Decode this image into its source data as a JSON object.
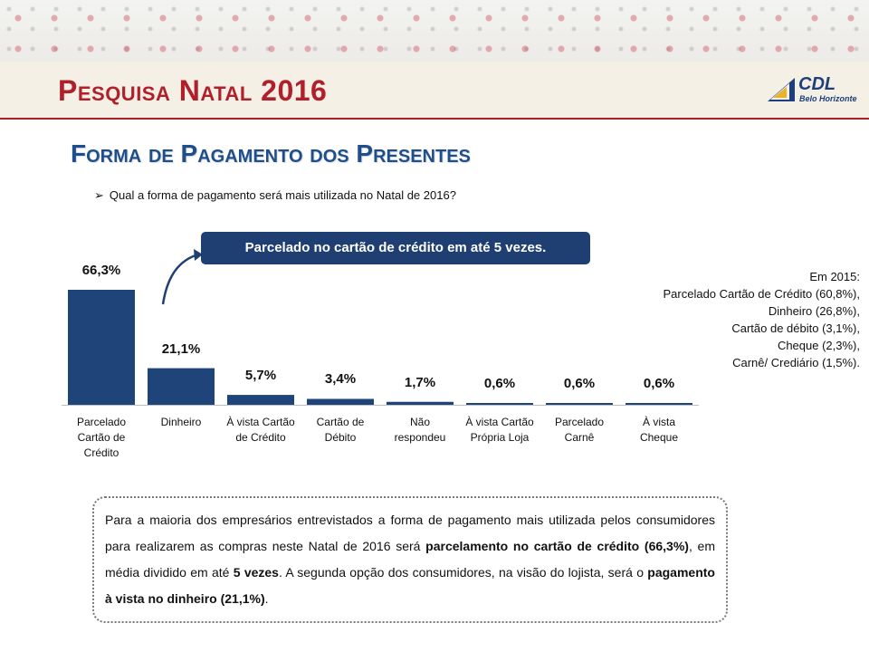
{
  "header": {
    "title": "Pesquisa Natal 2016",
    "logo_name": "CDL",
    "logo_sub": "Belo Horizonte"
  },
  "section_title": "Forma de Pagamento dos Presentes",
  "question": "Qual a forma de pagamento será mais utilizada no Natal de 2016?",
  "callout": "Parcelado no cartão de crédito em até 5 vezes.",
  "ref_2015": {
    "heading": "Em 2015:",
    "items": [
      "Parcelado Cartão de Crédito (60,8%),",
      "Dinheiro (26,8%),",
      "Cartão de débito (3,1%),",
      "Cheque (2,3%),",
      "Carnê/ Crediário (1,5%)."
    ]
  },
  "note": {
    "p1": "Para a maioria dos empresários entrevistados a forma de pagamento mais utilizada pelos consumidores para realizarem as compras neste Natal de 2016 será ",
    "b1": "parcelamento no cartão de crédito (66,3%)",
    "p2": ", em média dividido em até ",
    "b2": "5 vezes",
    "p3": ". A segunda opção dos consumidores, na visão do lojista, será o ",
    "b3": "pagamento à vista no dinheiro (21,1%)",
    "p4": "."
  },
  "colors": {
    "bar": "#1f4479",
    "accent_red": "#b01f2a",
    "title_blue": "#1e4f8c"
  },
  "chart_data": {
    "type": "bar",
    "categories": [
      "Parcelado Cartão de Crédito",
      "Dinheiro",
      "À vista Cartão de Crédito",
      "Cartão de Débito",
      "Não respondeu",
      "À vista Cartão Própria Loja",
      "Parcelado Carnê",
      "À vista Cheque"
    ],
    "category_lines": [
      [
        "Parcelado",
        "Cartão de",
        "Crédito"
      ],
      [
        "Dinheiro"
      ],
      [
        "À vista Cartão",
        "de Crédito"
      ],
      [
        "Cartão de",
        "Débito"
      ],
      [
        "Não",
        "respondeu"
      ],
      [
        "À vista Cartão",
        "Própria Loja"
      ],
      [
        "Parcelado",
        "Carnê"
      ],
      [
        "À vista",
        "Cheque"
      ]
    ],
    "values": [
      66.3,
      21.1,
      5.7,
      3.4,
      1.7,
      0.6,
      0.6,
      0.6
    ],
    "value_labels": [
      "66,3%",
      "21,1%",
      "5,7%",
      "3,4%",
      "1,7%",
      "0,6%",
      "0,6%",
      "0,6%"
    ],
    "ylim": [
      0,
      70
    ],
    "grid": false,
    "legend": "none"
  }
}
